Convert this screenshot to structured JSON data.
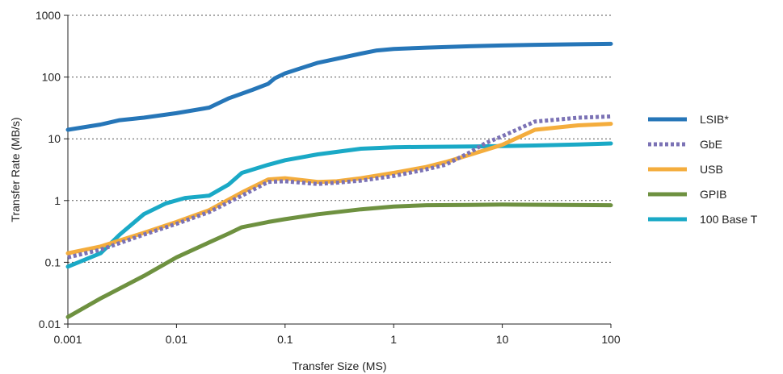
{
  "chart_data": {
    "type": "line",
    "xlabel": "Transfer Size (MS)",
    "ylabel": "Transfer Rate (MB/s)",
    "xscale": "log",
    "yscale": "log",
    "xlim": [
      0.001,
      100
    ],
    "ylim": [
      0.01,
      1000
    ],
    "xticks": [
      "0.001",
      "0.01",
      "0.1",
      "1",
      "10",
      "100"
    ],
    "yticks": [
      "0.01",
      "0.1",
      "1",
      "10",
      "100",
      "1000"
    ],
    "grid": "horizontal dotted",
    "legend_position": "right",
    "series": [
      {
        "name": "LSIB*",
        "color": "#2676b8",
        "style": "solid",
        "points": [
          [
            0.001,
            14
          ],
          [
            0.002,
            17
          ],
          [
            0.003,
            20
          ],
          [
            0.005,
            22
          ],
          [
            0.01,
            26
          ],
          [
            0.02,
            32
          ],
          [
            0.03,
            45
          ],
          [
            0.05,
            62
          ],
          [
            0.07,
            78
          ],
          [
            0.08,
            95
          ],
          [
            0.1,
            115
          ],
          [
            0.2,
            170
          ],
          [
            0.5,
            240
          ],
          [
            0.7,
            270
          ],
          [
            1,
            285
          ],
          [
            2,
            300
          ],
          [
            5,
            315
          ],
          [
            10,
            325
          ],
          [
            20,
            333
          ],
          [
            50,
            340
          ],
          [
            100,
            345
          ]
        ]
      },
      {
        "name": "GbE",
        "color": "#7b72b5",
        "style": "dotted",
        "points": [
          [
            0.001,
            0.12
          ],
          [
            0.002,
            0.16
          ],
          [
            0.005,
            0.28
          ],
          [
            0.01,
            0.42
          ],
          [
            0.02,
            0.65
          ],
          [
            0.04,
            1.2
          ],
          [
            0.07,
            2.0
          ],
          [
            0.1,
            2.05
          ],
          [
            0.2,
            1.85
          ],
          [
            0.3,
            1.95
          ],
          [
            0.5,
            2.1
          ],
          [
            1,
            2.5
          ],
          [
            2,
            3.2
          ],
          [
            3,
            3.8
          ],
          [
            5,
            6
          ],
          [
            7,
            8.5
          ],
          [
            10,
            11
          ],
          [
            20,
            19
          ],
          [
            50,
            22
          ],
          [
            100,
            23
          ]
        ]
      },
      {
        "name": "USB",
        "color": "#f4ad3d",
        "style": "solid",
        "points": [
          [
            0.001,
            0.14
          ],
          [
            0.002,
            0.18
          ],
          [
            0.005,
            0.3
          ],
          [
            0.01,
            0.45
          ],
          [
            0.02,
            0.7
          ],
          [
            0.04,
            1.35
          ],
          [
            0.07,
            2.2
          ],
          [
            0.1,
            2.3
          ],
          [
            0.2,
            2.0
          ],
          [
            0.3,
            2.05
          ],
          [
            0.5,
            2.3
          ],
          [
            1,
            2.8
          ],
          [
            2,
            3.5
          ],
          [
            3,
            4.2
          ],
          [
            5,
            5.5
          ],
          [
            10,
            8
          ],
          [
            20,
            14
          ],
          [
            50,
            16.5
          ],
          [
            100,
            17.5
          ]
        ]
      },
      {
        "name": "GPIB",
        "color": "#6e9140",
        "style": "solid",
        "points": [
          [
            0.001,
            0.013
          ],
          [
            0.002,
            0.026
          ],
          [
            0.005,
            0.06
          ],
          [
            0.01,
            0.12
          ],
          [
            0.02,
            0.21
          ],
          [
            0.03,
            0.29
          ],
          [
            0.04,
            0.37
          ],
          [
            0.07,
            0.45
          ],
          [
            0.1,
            0.5
          ],
          [
            0.2,
            0.6
          ],
          [
            0.5,
            0.72
          ],
          [
            1,
            0.8
          ],
          [
            2,
            0.84
          ],
          [
            5,
            0.85
          ],
          [
            10,
            0.86
          ],
          [
            100,
            0.84
          ]
        ]
      },
      {
        "name": "100 Base T",
        "color": "#1aa9c6",
        "style": "solid",
        "points": [
          [
            0.001,
            0.085
          ],
          [
            0.002,
            0.14
          ],
          [
            0.003,
            0.28
          ],
          [
            0.005,
            0.6
          ],
          [
            0.008,
            0.9
          ],
          [
            0.012,
            1.1
          ],
          [
            0.02,
            1.2
          ],
          [
            0.03,
            1.8
          ],
          [
            0.04,
            2.8
          ],
          [
            0.07,
            3.8
          ],
          [
            0.1,
            4.5
          ],
          [
            0.2,
            5.6
          ],
          [
            0.5,
            6.9
          ],
          [
            1,
            7.3
          ],
          [
            2,
            7.4
          ],
          [
            5,
            7.5
          ],
          [
            10,
            7.6
          ],
          [
            20,
            7.8
          ],
          [
            50,
            8.1
          ],
          [
            100,
            8.4
          ]
        ]
      }
    ]
  }
}
